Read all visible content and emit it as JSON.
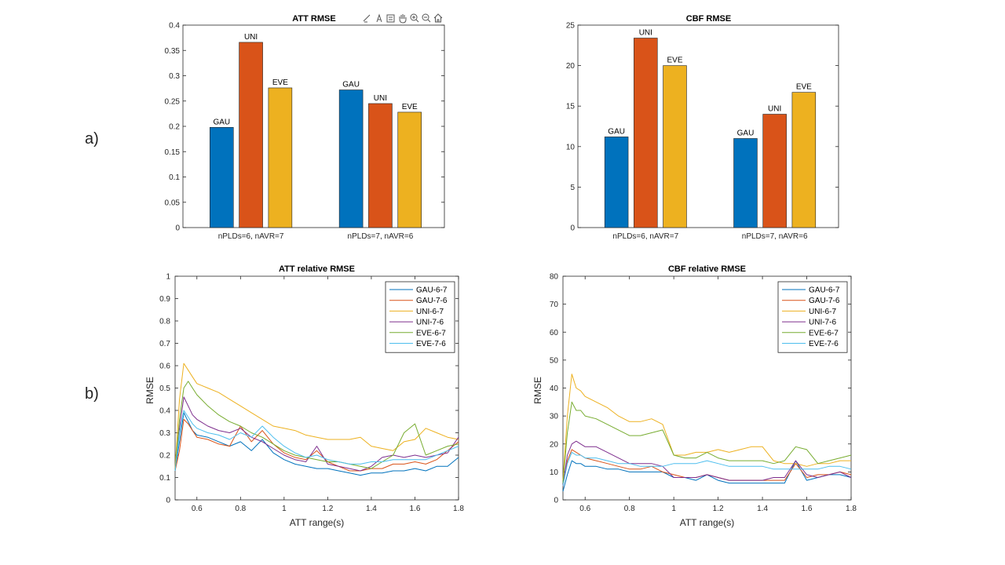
{
  "figure": {
    "panel_a_label": "a)",
    "panel_b_label": "b)",
    "toolbar": [
      "brush-icon",
      "data-tips-icon",
      "restore-icon",
      "pan-icon",
      "zoom-in-icon",
      "zoom-out-icon",
      "home-icon"
    ]
  },
  "chart_data": [
    {
      "type": "bar",
      "title": "ATT RMSE",
      "categories": [
        "nPLDs=6, nAVR=7",
        "nPLDs=7, nAVR=6"
      ],
      "series": [
        {
          "name": "GAU",
          "values": [
            0.198,
            0.272
          ],
          "color": "#0072BD"
        },
        {
          "name": "UNI",
          "values": [
            0.366,
            0.245
          ],
          "color": "#D95319"
        },
        {
          "name": "EVE",
          "values": [
            0.276,
            0.228
          ],
          "color": "#EDB120"
        }
      ],
      "ylim": [
        0,
        0.4
      ],
      "yticks": [
        "0",
        "0.05",
        "0.1",
        "0.15",
        "0.2",
        "0.25",
        "0.3",
        "0.35",
        "0.4"
      ],
      "xlabel": "",
      "ylabel": ""
    },
    {
      "type": "bar",
      "title": "CBF RMSE",
      "categories": [
        "nPLDs=6, nAVR=7",
        "nPLDs=7, nAVR=6"
      ],
      "series": [
        {
          "name": "GAU",
          "values": [
            11.2,
            11.0
          ],
          "color": "#0072BD"
        },
        {
          "name": "UNI",
          "values": [
            23.4,
            14.0
          ],
          "color": "#D95319"
        },
        {
          "name": "EVE",
          "values": [
            20.0,
            16.7
          ],
          "color": "#EDB120"
        }
      ],
      "ylim": [
        0,
        25
      ],
      "yticks": [
        "0",
        "5",
        "10",
        "15",
        "20",
        "25"
      ],
      "xlabel": "",
      "ylabel": ""
    },
    {
      "type": "line",
      "title": "ATT relative RMSE",
      "xlabel": "ATT range(s)",
      "ylabel": "RMSE",
      "xlim": [
        0.5,
        1.8
      ],
      "ylim": [
        0,
        1
      ],
      "xticks": [
        "0.6",
        "0.8",
        "1",
        "1.2",
        "1.4",
        "1.6",
        "1.8"
      ],
      "yticks": [
        "0",
        "0.1",
        "0.2",
        "0.3",
        "0.4",
        "0.5",
        "0.6",
        "0.7",
        "0.8",
        "0.9",
        "1"
      ],
      "legend_position": "top-right",
      "x": [
        0.5,
        0.52,
        0.54,
        0.56,
        0.58,
        0.6,
        0.65,
        0.7,
        0.75,
        0.8,
        0.85,
        0.9,
        0.95,
        1.0,
        1.05,
        1.1,
        1.15,
        1.2,
        1.25,
        1.3,
        1.35,
        1.4,
        1.45,
        1.5,
        1.55,
        1.6,
        1.65,
        1.7,
        1.75,
        1.8
      ],
      "series": [
        {
          "name": "GAU-6-7",
          "color": "#0072BD",
          "values": [
            0.13,
            0.26,
            0.39,
            0.35,
            0.31,
            0.29,
            0.28,
            0.26,
            0.24,
            0.26,
            0.22,
            0.27,
            0.21,
            0.18,
            0.16,
            0.15,
            0.14,
            0.14,
            0.13,
            0.12,
            0.11,
            0.12,
            0.12,
            0.13,
            0.13,
            0.14,
            0.13,
            0.15,
            0.15,
            0.19
          ]
        },
        {
          "name": "GAU-7-6",
          "color": "#D95319",
          "values": [
            0.13,
            0.22,
            0.36,
            0.34,
            0.31,
            0.28,
            0.27,
            0.25,
            0.24,
            0.33,
            0.26,
            0.31,
            0.25,
            0.21,
            0.19,
            0.18,
            0.22,
            0.17,
            0.15,
            0.13,
            0.13,
            0.14,
            0.14,
            0.16,
            0.16,
            0.17,
            0.16,
            0.18,
            0.22,
            0.26
          ]
        },
        {
          "name": "UNI-6-7",
          "color": "#EDB120",
          "values": [
            0.14,
            0.45,
            0.61,
            0.58,
            0.55,
            0.52,
            0.5,
            0.48,
            0.45,
            0.42,
            0.39,
            0.36,
            0.33,
            0.32,
            0.31,
            0.29,
            0.28,
            0.27,
            0.27,
            0.27,
            0.28,
            0.24,
            0.23,
            0.22,
            0.26,
            0.27,
            0.32,
            0.3,
            0.28,
            0.27
          ]
        },
        {
          "name": "UNI-7-6",
          "color": "#7E2F8E",
          "values": [
            0.13,
            0.32,
            0.46,
            0.42,
            0.38,
            0.36,
            0.33,
            0.31,
            0.3,
            0.32,
            0.28,
            0.26,
            0.23,
            0.2,
            0.18,
            0.17,
            0.24,
            0.16,
            0.15,
            0.14,
            0.13,
            0.15,
            0.19,
            0.2,
            0.19,
            0.2,
            0.19,
            0.2,
            0.21,
            0.28
          ]
        },
        {
          "name": "EVE-6-7",
          "color": "#77AC30",
          "values": [
            0.13,
            0.36,
            0.5,
            0.53,
            0.5,
            0.47,
            0.42,
            0.38,
            0.35,
            0.33,
            0.3,
            0.28,
            0.25,
            0.22,
            0.2,
            0.19,
            0.18,
            0.17,
            0.17,
            0.16,
            0.15,
            0.14,
            0.17,
            0.2,
            0.3,
            0.34,
            0.2,
            0.22,
            0.24,
            0.25
          ]
        },
        {
          "name": "EVE-7-6",
          "color": "#4DBEEE",
          "values": [
            0.13,
            0.3,
            0.4,
            0.37,
            0.34,
            0.32,
            0.3,
            0.29,
            0.27,
            0.3,
            0.28,
            0.33,
            0.28,
            0.24,
            0.21,
            0.19,
            0.2,
            0.18,
            0.17,
            0.16,
            0.16,
            0.17,
            0.17,
            0.18,
            0.18,
            0.18,
            0.18,
            0.2,
            0.22,
            0.24
          ]
        }
      ]
    },
    {
      "type": "line",
      "title": "CBF relative RMSE",
      "xlabel": "ATT range(s)",
      "ylabel": "RMSE",
      "xlim": [
        0.5,
        1.8
      ],
      "ylim": [
        0,
        80
      ],
      "xticks": [
        "0.6",
        "0.8",
        "1",
        "1.2",
        "1.4",
        "1.6",
        "1.8"
      ],
      "yticks": [
        "0",
        "10",
        "20",
        "30",
        "40",
        "50",
        "60",
        "70",
        "80"
      ],
      "legend_position": "top-right",
      "x": [
        0.5,
        0.52,
        0.54,
        0.56,
        0.58,
        0.6,
        0.65,
        0.7,
        0.75,
        0.8,
        0.85,
        0.9,
        0.95,
        1.0,
        1.05,
        1.1,
        1.15,
        1.2,
        1.25,
        1.3,
        1.35,
        1.4,
        1.45,
        1.5,
        1.55,
        1.6,
        1.65,
        1.7,
        1.75,
        1.8
      ],
      "series": [
        {
          "name": "GAU-6-7",
          "color": "#0072BD",
          "values": [
            3,
            9,
            14,
            13,
            13,
            12,
            12,
            11,
            11,
            10,
            10,
            10,
            10,
            8,
            8,
            7,
            9,
            7,
            6,
            6,
            6,
            6,
            6,
            6,
            14,
            7,
            8,
            9,
            9,
            8
          ]
        },
        {
          "name": "GAU-7-6",
          "color": "#D95319",
          "values": [
            5,
            14,
            18,
            17,
            16,
            15,
            14,
            13,
            12,
            11,
            11,
            12,
            10,
            9,
            8,
            8,
            9,
            8,
            7,
            7,
            7,
            7,
            7,
            7,
            13,
            8,
            9,
            9,
            10,
            9
          ]
        },
        {
          "name": "UNI-6-7",
          "color": "#EDB120",
          "values": [
            7,
            30,
            45,
            40,
            39,
            37,
            35,
            33,
            30,
            28,
            28,
            29,
            27,
            16,
            16,
            17,
            17,
            18,
            17,
            18,
            19,
            19,
            14,
            13,
            13,
            12,
            13,
            13,
            14,
            14
          ]
        },
        {
          "name": "UNI-7-6",
          "color": "#7E2F8E",
          "values": [
            5,
            16,
            20,
            21,
            20,
            19,
            19,
            17,
            15,
            13,
            13,
            13,
            12,
            8,
            8,
            8,
            9,
            8,
            7,
            7,
            7,
            7,
            8,
            8,
            14,
            9,
            8,
            9,
            10,
            8
          ]
        },
        {
          "name": "EVE-6-7",
          "color": "#77AC30",
          "values": [
            6,
            24,
            35,
            32,
            32,
            30,
            29,
            27,
            25,
            23,
            23,
            24,
            25,
            16,
            15,
            15,
            17,
            15,
            14,
            14,
            14,
            14,
            13,
            14,
            19,
            18,
            13,
            14,
            15,
            16
          ]
        },
        {
          "name": "EVE-7-6",
          "color": "#4DBEEE",
          "values": [
            5,
            13,
            17,
            16,
            16,
            15,
            15,
            14,
            13,
            13,
            12,
            12,
            12,
            13,
            13,
            13,
            14,
            13,
            12,
            12,
            12,
            12,
            11,
            11,
            11,
            11,
            11,
            12,
            12,
            11
          ]
        }
      ]
    }
  ]
}
